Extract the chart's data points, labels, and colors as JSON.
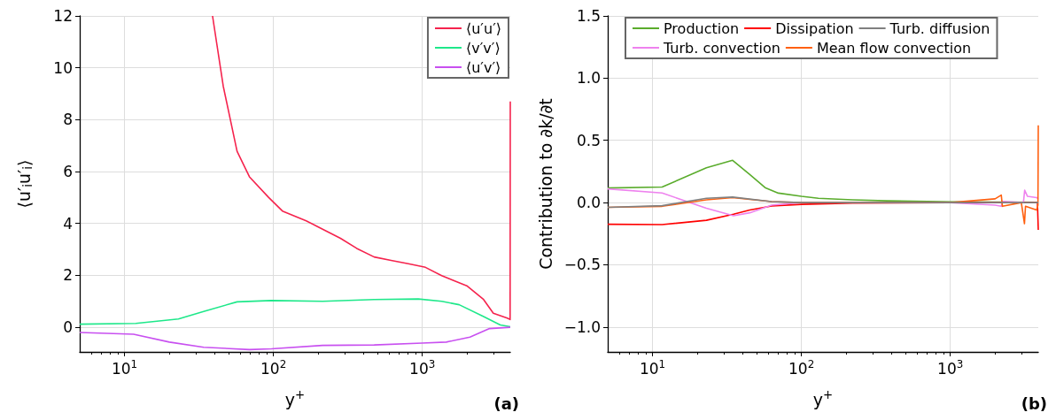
{
  "chart_data": [
    {
      "type": "line",
      "xlabel": "y$^{+}$",
      "ylabel": "⟨u′$_{i}$u′$_{i}$⟩",
      "log": "x",
      "grid": true,
      "legend": "top right",
      "marker": "none",
      "xlim": [
        5,
        3900
      ],
      "ylim": [
        -0.95,
        12
      ],
      "xticks": [
        {
          "value": 10,
          "label": "10$^{1}$"
        },
        {
          "value": 100,
          "label": "10$^{2}$"
        },
        {
          "value": 1000,
          "label": "10$^{3}$"
        }
      ],
      "yticks": [
        0,
        2,
        4,
        6,
        8,
        10,
        12
      ],
      "annotations": [
        "(a)"
      ],
      "series": [
        {
          "name": "⟨u′u′⟩",
          "color": "#f5234d",
          "x": [
            39,
            46,
            57,
            69,
            93,
            115,
            166,
            195,
            282,
            363,
            475,
            617,
            805,
            1050,
            1350,
            1990,
            2580,
            3000,
            3720,
            3890,
            3900
          ],
          "values": [
            12,
            9.3,
            6.78,
            5.8,
            5.0,
            4.48,
            4.1,
            3.9,
            3.43,
            3.04,
            2.71,
            2.58,
            2.45,
            2.31,
            1.99,
            1.6,
            1.07,
            0.54,
            0.35,
            0.3,
            8.7
          ]
        },
        {
          "name": "⟨v′v′⟩",
          "color": "#1ee88a",
          "x": [
            5,
            11.9,
            23,
            34,
            57,
            97,
            214,
            475,
            940,
            1350,
            1770,
            2580,
            3340,
            3900
          ],
          "values": [
            0.12,
            0.15,
            0.32,
            0.61,
            0.98,
            1.03,
            1.0,
            1.07,
            1.09,
            1.0,
            0.87,
            0.41,
            0.09,
            0.02
          ]
        },
        {
          "name": "⟨u′v′⟩",
          "color": "#c850f0",
          "x": [
            5,
            11.5,
            20,
            34,
            69,
            97,
            214,
            475,
            1000,
            1450,
            2090,
            2830,
            3900
          ],
          "values": [
            -0.2,
            -0.27,
            -0.57,
            -0.77,
            -0.86,
            -0.83,
            -0.7,
            -0.68,
            -0.61,
            -0.57,
            -0.38,
            -0.05,
            0
          ]
        }
      ]
    },
    {
      "type": "line",
      "xlabel": "y$^{+}$",
      "ylabel": "Contribution to ∂k/∂t",
      "log": "x",
      "grid": true,
      "legend": "top",
      "marker": "none",
      "xlim": [
        5,
        3900
      ],
      "ylim": [
        -1.2,
        1.5
      ],
      "xticks": [
        {
          "value": 10,
          "label": "10$^{1}$"
        },
        {
          "value": 100,
          "label": "10$^{2}$"
        },
        {
          "value": 1000,
          "label": "10$^{3}$"
        }
      ],
      "yticks": [
        {
          "value": -1,
          "label": "−1.0"
        },
        {
          "value": -0.5,
          "label": "−0.5"
        },
        {
          "value": 0,
          "label": "0.0"
        },
        0.5,
        {
          "value": 1,
          "label": "1.0"
        },
        1.5
      ],
      "annotations": [
        "(b)"
      ],
      "series": [
        {
          "name": "Production",
          "color": "#5aac2c",
          "x": [
            5,
            11.6,
            23,
            34.5,
            45,
            57,
            70,
            100,
            130,
            220,
            375,
            1070,
            3900
          ],
          "values": [
            0.117,
            0.125,
            0.28,
            0.34,
            0.226,
            0.12,
            0.076,
            0.05,
            0.035,
            0.022,
            0.014,
            0.005,
            0.003
          ]
        },
        {
          "name": "Dissipation",
          "color": "#ff0000",
          "x": [
            5,
            11.6,
            23,
            35,
            45,
            63,
            100,
            220,
            1000,
            3850,
            3900
          ],
          "values": [
            -0.174,
            -0.177,
            -0.142,
            -0.093,
            -0.06,
            -0.027,
            -0.014,
            -0.005,
            0,
            0,
            -0.22
          ]
        },
        {
          "name": "Turb. diffusion",
          "color": "#808080",
          "x": [
            5,
            11.6,
            23,
            34.5,
            63,
            100,
            3900
          ],
          "values": [
            -0.038,
            -0.025,
            0.035,
            0.044,
            0.008,
            0,
            0
          ]
        },
        {
          "name": "Turb. convection",
          "color": "#ee82ee",
          "x": [
            5,
            11.6,
            23,
            35,
            45,
            63,
            100,
            1000,
            2000,
            2200,
            2240,
            3100,
            3160,
            3300,
            3800,
            3900
          ],
          "values": [
            0.11,
            0.077,
            -0.046,
            -0.106,
            -0.082,
            -0.02,
            0,
            0,
            -0.02,
            -0.03,
            0.01,
            0,
            0.1,
            0.05,
            0.04,
            0.03
          ]
        },
        {
          "name": "Mean flow convection",
          "color": "#ff6010",
          "x": [
            5,
            11.6,
            23,
            34.5,
            63,
            100,
            1000,
            2000,
            2200,
            2240,
            3000,
            3150,
            3200,
            3800,
            3880,
            3900
          ],
          "values": [
            -0.038,
            -0.03,
            0.022,
            0.04,
            0.008,
            0,
            0,
            0.03,
            0.06,
            -0.03,
            0,
            -0.17,
            -0.03,
            -0.06,
            -0.02,
            0.62
          ]
        }
      ]
    }
  ]
}
